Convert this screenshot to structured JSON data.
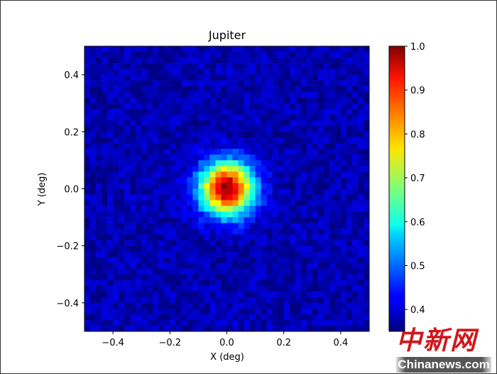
{
  "chart_data": {
    "type": "heatmap",
    "title": "Jupiter",
    "xlabel": "X (deg)",
    "ylabel": "Y (deg)",
    "xlim": [
      -0.5,
      0.5
    ],
    "ylim": [
      -0.5,
      0.5
    ],
    "xticks": [
      -0.4,
      -0.2,
      0.0,
      0.2,
      0.4
    ],
    "yticks": [
      -0.4,
      -0.2,
      0.0,
      0.2,
      0.4
    ],
    "xtick_labels": [
      "−0.4",
      "−0.2",
      "0.0",
      "0.2",
      "0.4"
    ],
    "ytick_labels": [
      "−0.4",
      "−0.2",
      "0.0",
      "0.2",
      "0.4"
    ],
    "grid_size": 50,
    "source_model": {
      "center": [
        0.0,
        0.0
      ],
      "peak": 1.0,
      "background": 0.38,
      "sigma_deg": 0.065,
      "noise": 0.035
    },
    "colormap": "jet",
    "colorbar": {
      "range": [
        0.35,
        1.0
      ],
      "ticks": [
        0.4,
        0.5,
        0.6,
        0.7,
        0.8,
        0.9,
        1.0
      ],
      "tick_labels": [
        "0.4",
        "0.5",
        "0.6",
        "0.7",
        "0.8",
        "0.9",
        "1.0"
      ]
    }
  },
  "watermark": {
    "cn": "中新网",
    "en": "Chinanews.com"
  }
}
